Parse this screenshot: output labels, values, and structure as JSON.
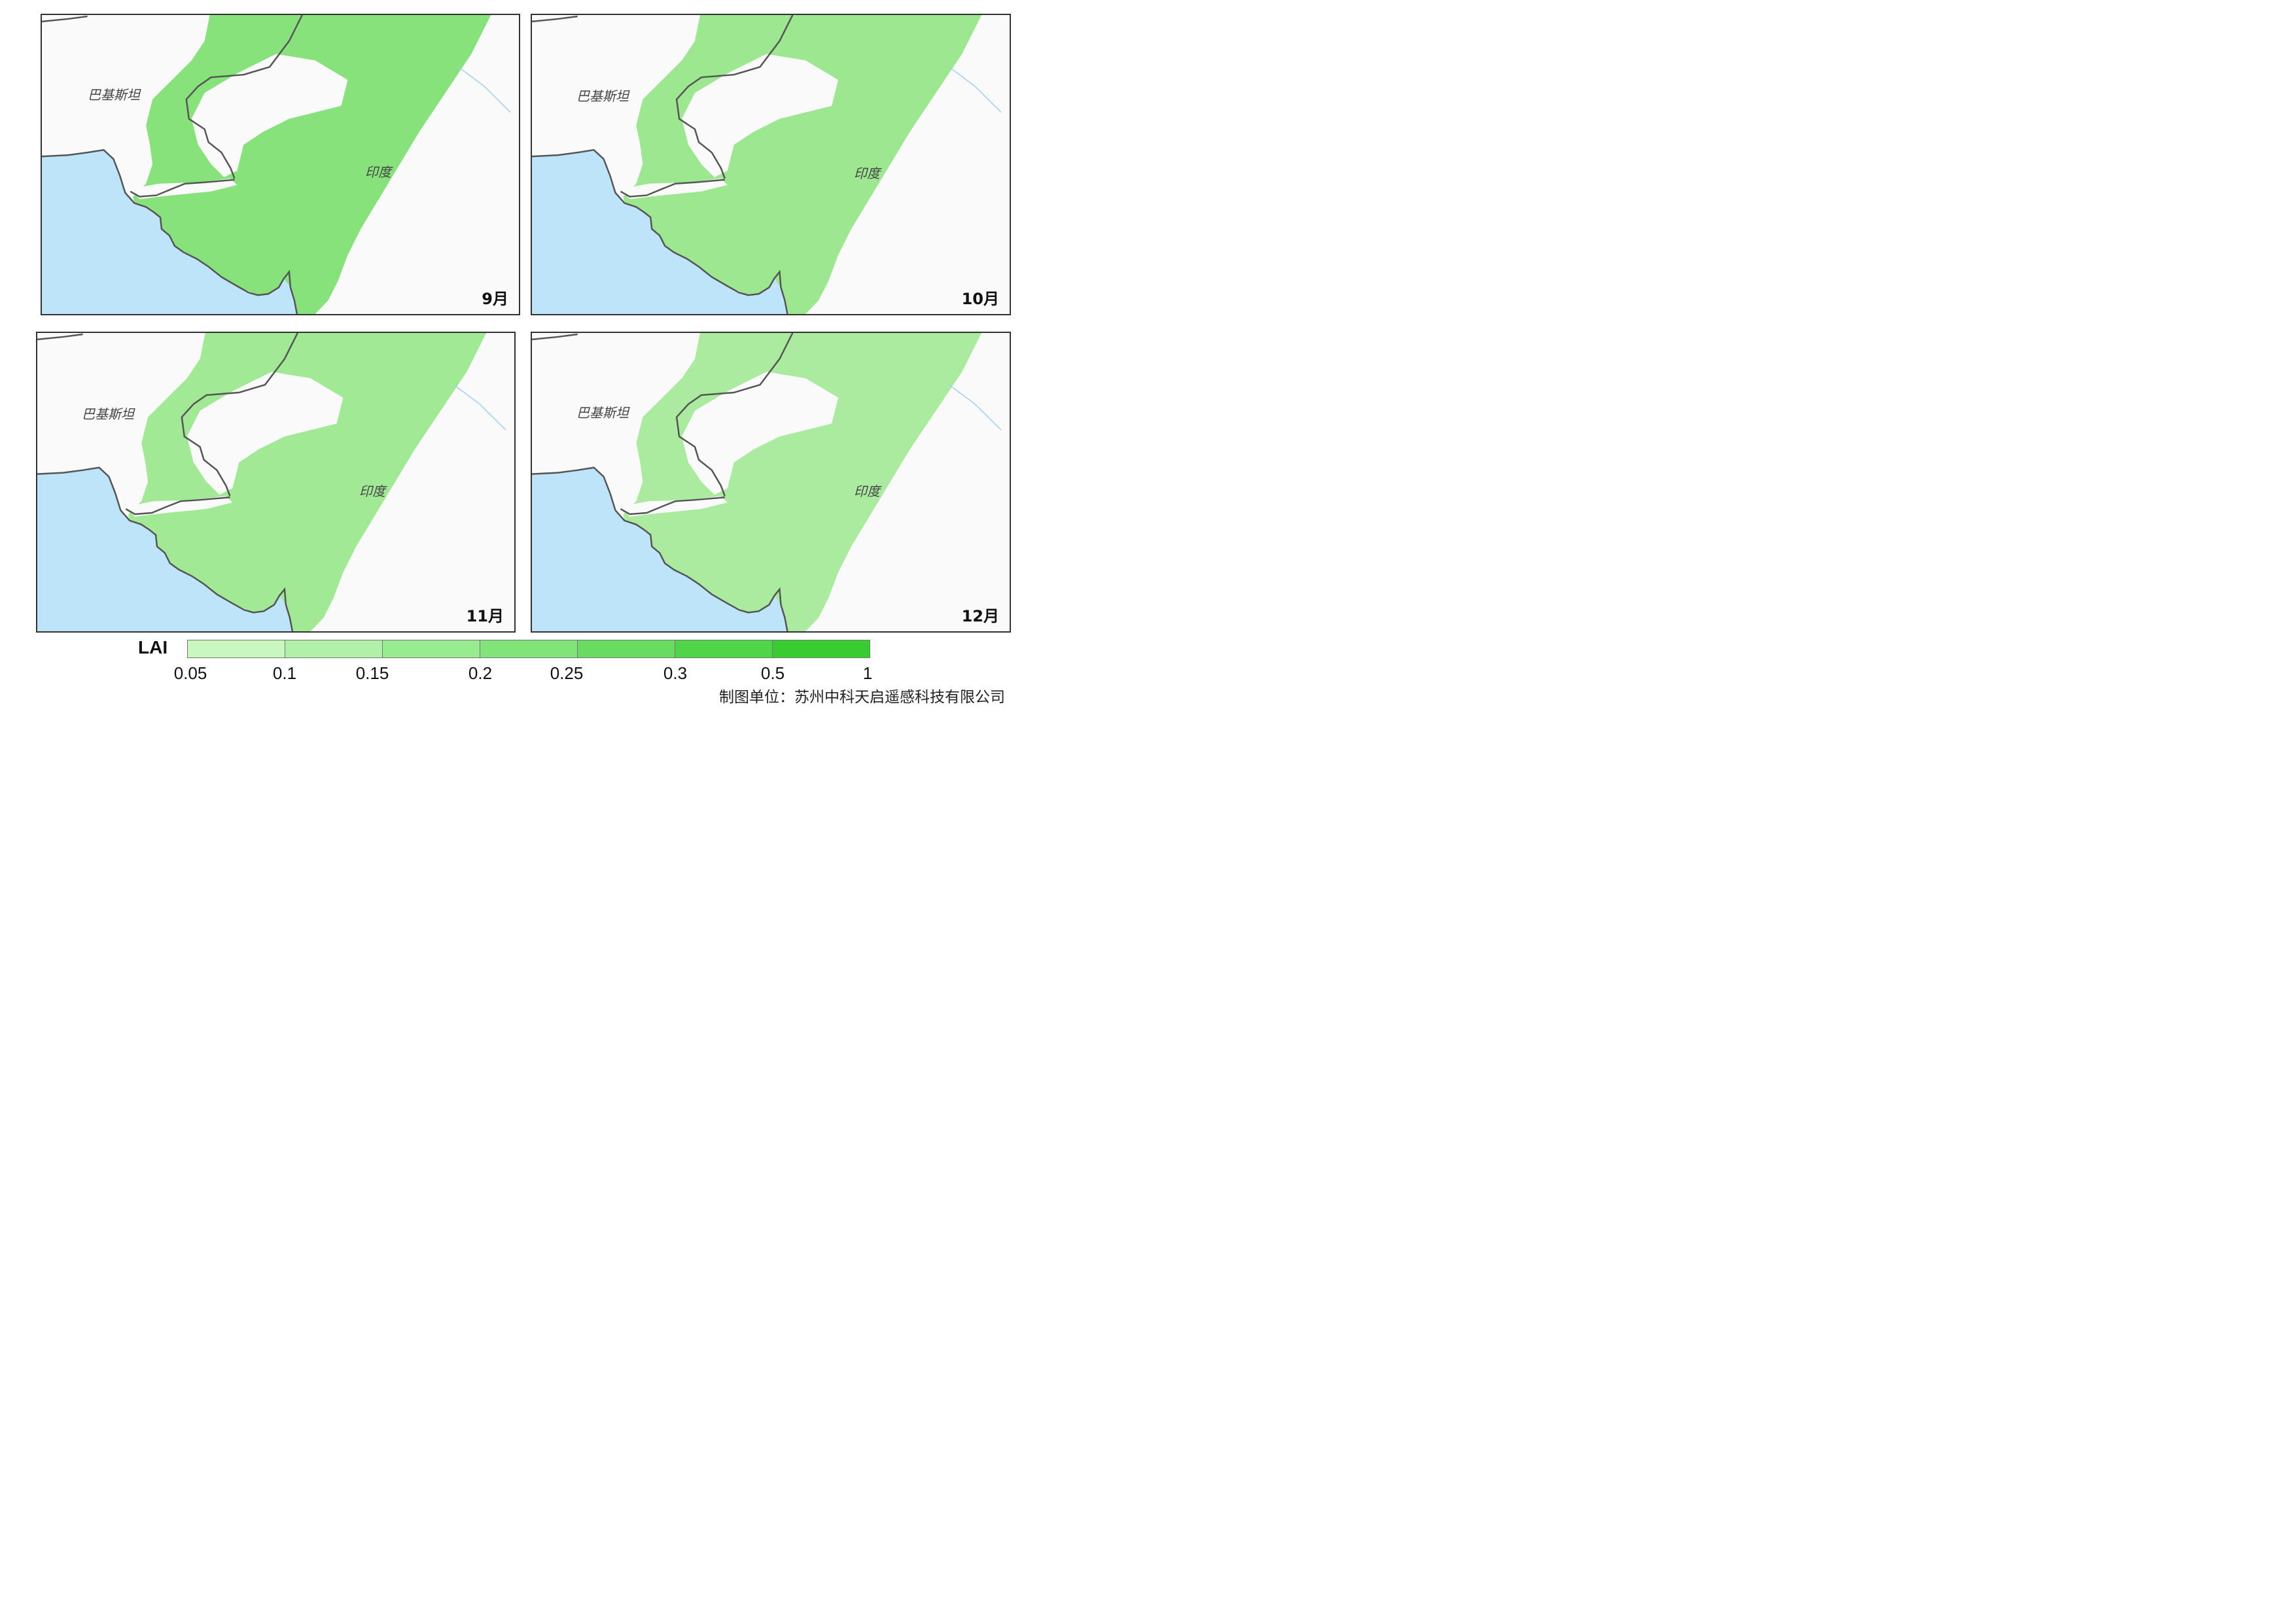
{
  "panels": [
    {
      "month": "9月",
      "country_left": "巴基斯坦",
      "country_right": "印度",
      "intensity": 0.75
    },
    {
      "month": "10月",
      "country_left": "巴基斯坦",
      "country_right": "印度",
      "intensity": 0.55
    },
    {
      "month": "11月",
      "country_left": "巴基斯坦",
      "country_right": "印度",
      "intensity": 0.5
    },
    {
      "month": "12月",
      "country_left": "巴基斯坦",
      "country_right": "印度",
      "intensity": 0.4
    }
  ],
  "legend": {
    "title": "LAI",
    "ticks": [
      "0.05",
      "0.1",
      "0.15",
      "0.2",
      "0.25",
      "0.3",
      "0.5",
      "1"
    ],
    "colors": [
      "#c8f8c0",
      "#b0f0a8",
      "#98ec90",
      "#80e478",
      "#68dc60",
      "#50d448",
      "#38cc30"
    ]
  },
  "credit": "制图单位：苏州中科天启遥感科技有限公司",
  "colors": {
    "sea": "#bde4f8",
    "land": "#fafafa",
    "veg_light": "#d2f5c8",
    "veg_dark": "#6fdc62",
    "border": "#555555",
    "river": "#9fd0ef"
  }
}
